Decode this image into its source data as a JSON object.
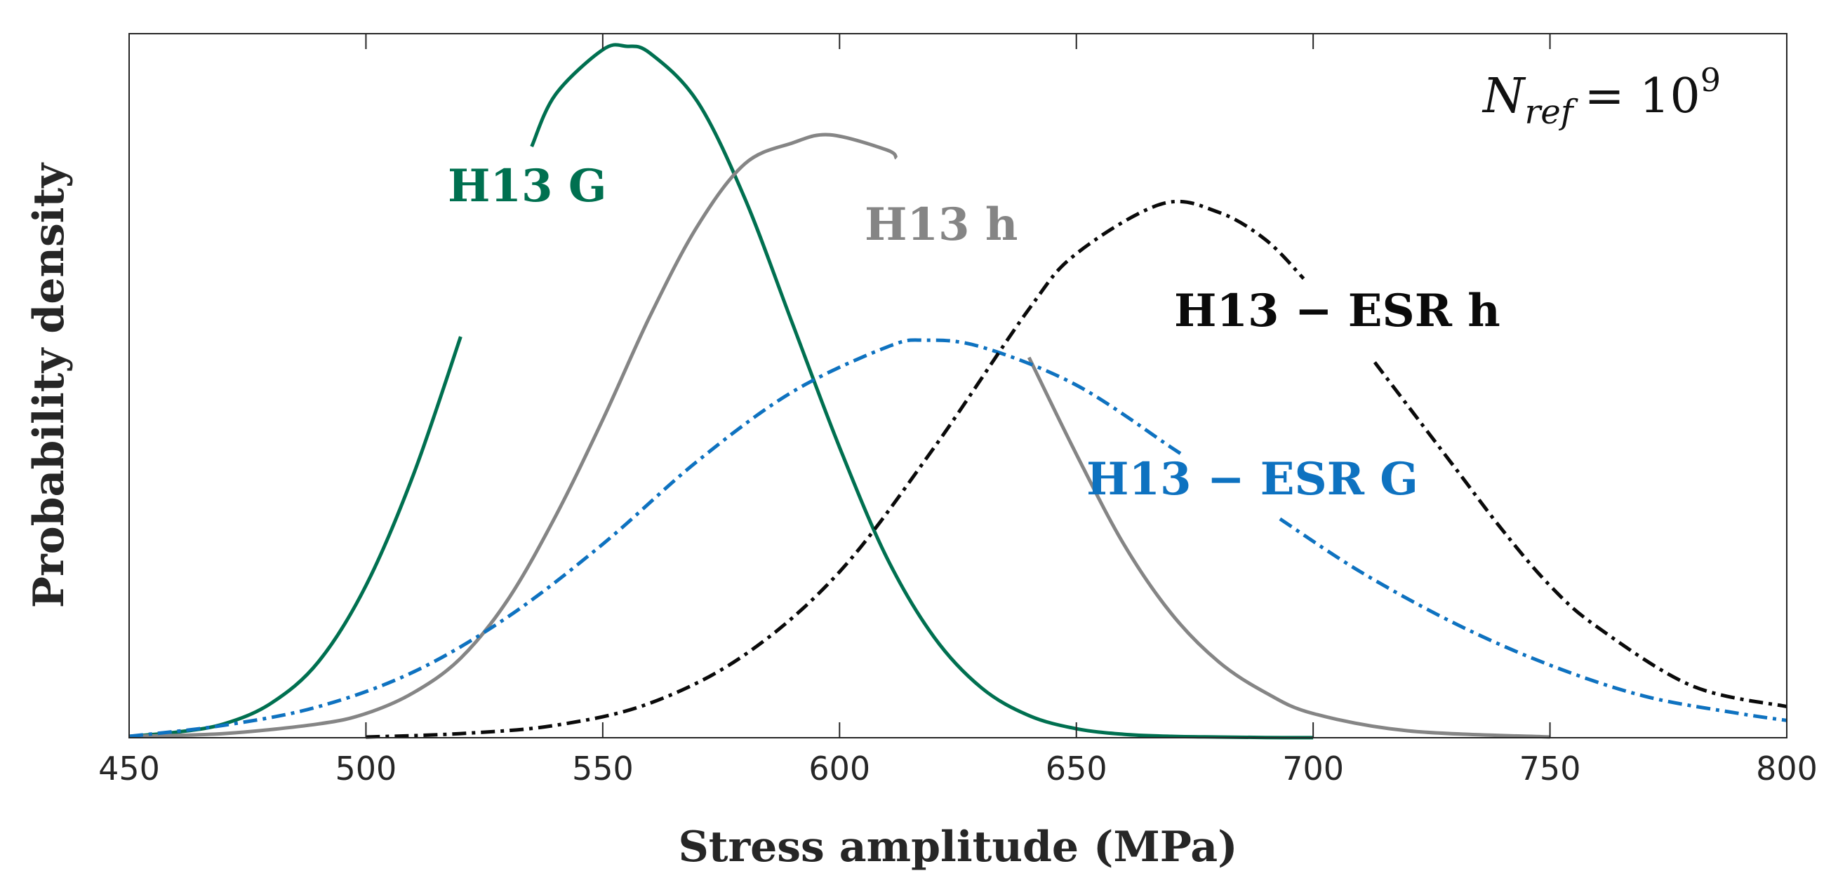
{
  "chart_data": {
    "type": "line",
    "title": "",
    "xlabel": "Stress amplitude (MPa)",
    "ylabel": "Probability density",
    "xlim": [
      450,
      800
    ],
    "ylim": [
      0,
      1.0
    ],
    "xticks": [
      450,
      500,
      550,
      600,
      650,
      700,
      750,
      800
    ],
    "yticks": [],
    "grid": false,
    "annotation": {
      "text": "N_ref = 10^9",
      "main": "N",
      "subscript": "ref",
      "eq": "= 10",
      "superscript": "9"
    },
    "series": [
      {
        "name": "H13 G",
        "label": "H13 G",
        "color": "#007050",
        "style": "solid",
        "x": [
          450,
          460,
          470,
          480,
          490,
          500,
          510,
          520,
          530,
          540,
          550,
          555,
          560,
          570,
          580,
          590,
          600,
          610,
          620,
          630,
          640,
          650,
          660,
          670,
          680,
          690,
          700
        ],
        "y": [
          0.002,
          0.008,
          0.02,
          0.05,
          0.11,
          0.22,
          0.38,
          0.58,
          0.78,
          0.93,
          0.995,
          1.0,
          0.99,
          0.92,
          0.78,
          0.6,
          0.42,
          0.26,
          0.145,
          0.072,
          0.032,
          0.013,
          0.005,
          0.002,
          0.001,
          0.0003,
          0.0001
        ],
        "label_gap": [
          520,
          535
        ]
      },
      {
        "name": "H13 h",
        "label": "H13 h",
        "color": "#858585",
        "style": "solid",
        "x": [
          450,
          470,
          490,
          500,
          510,
          520,
          530,
          540,
          550,
          560,
          570,
          580,
          590,
          598,
          610,
          620,
          630,
          640,
          650,
          660,
          670,
          680,
          690,
          700,
          720,
          750
        ],
        "y": [
          0.002,
          0.006,
          0.02,
          0.035,
          0.065,
          0.115,
          0.2,
          0.32,
          0.46,
          0.61,
          0.74,
          0.83,
          0.86,
          0.872,
          0.85,
          0.79,
          0.68,
          0.55,
          0.41,
          0.28,
          0.18,
          0.11,
          0.065,
          0.035,
          0.01,
          0.001
        ],
        "label_gap": [
          612,
          640
        ]
      },
      {
        "name": "H13 - ESR G",
        "label": "H13 − ESR G",
        "color": "#0E72C0",
        "style": "dashdot",
        "x": [
          450,
          470,
          490,
          510,
          530,
          550,
          570,
          590,
          610,
          618,
          630,
          650,
          670,
          690,
          710,
          730,
          750,
          770,
          790,
          800
        ],
        "y": [
          0.002,
          0.018,
          0.045,
          0.095,
          0.175,
          0.28,
          0.4,
          0.5,
          0.565,
          0.575,
          0.565,
          0.51,
          0.42,
          0.33,
          0.24,
          0.165,
          0.105,
          0.06,
          0.035,
          0.025
        ],
        "label_gap": [
          672,
          693
        ]
      },
      {
        "name": "H13 - ESR h",
        "label": "H13 − ESR h",
        "color": "#0A0A0A",
        "style": "dashdot",
        "x": [
          500,
          520,
          540,
          560,
          580,
          600,
          620,
          640,
          650,
          668,
          680,
          690,
          700,
          710,
          720,
          730,
          740,
          750,
          760,
          780,
          800
        ],
        "y": [
          0.001,
          0.006,
          0.018,
          0.05,
          0.12,
          0.24,
          0.42,
          0.62,
          0.7,
          0.772,
          0.76,
          0.72,
          0.65,
          0.57,
          0.48,
          0.39,
          0.3,
          0.22,
          0.16,
          0.075,
          0.045
        ],
        "label_gap": [
          698,
          713
        ]
      }
    ]
  }
}
